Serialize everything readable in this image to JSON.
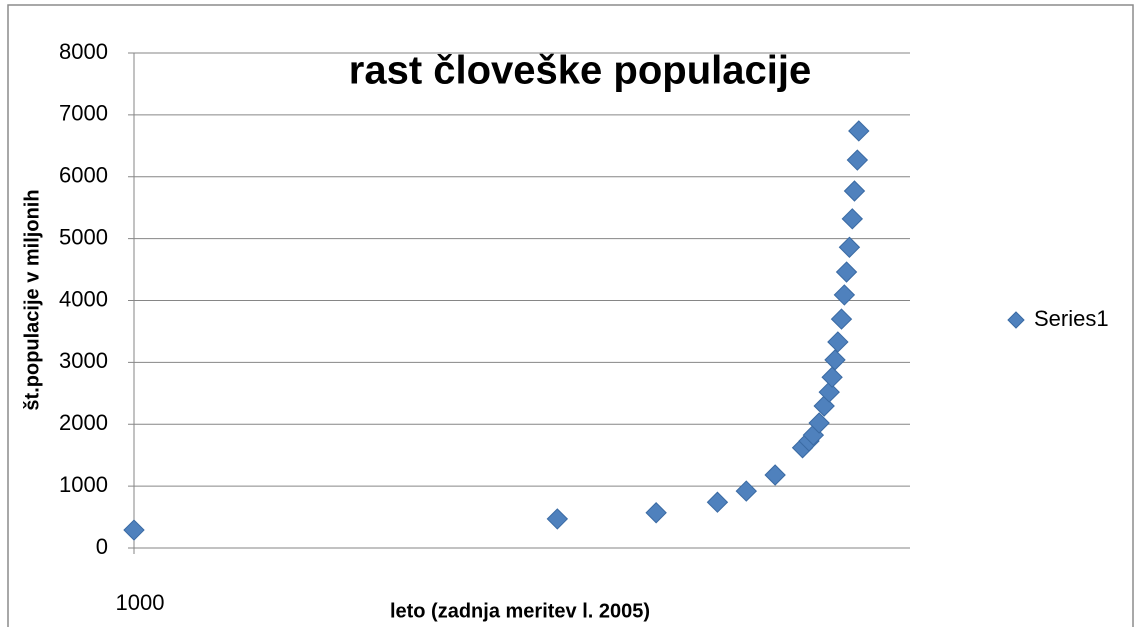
{
  "chart_data": {
    "type": "scatter",
    "title": "rast človeške populacije",
    "x_label": "leto (zadnja meritev l. 2005)",
    "y_label": "št.populacije v miljonih",
    "series": [
      {
        "name": "Series1",
        "color": "#4f81bd",
        "x": [
          1000,
          1587,
          1724,
          1809,
          1849,
          1889,
          1927,
          1936,
          1942,
          1950,
          1957,
          1964,
          1968,
          1972,
          1976,
          1981,
          1985,
          1988,
          1992,
          1996,
          1999,
          2003,
          2005
        ],
        "values": [
          290,
          470,
          570,
          740,
          920,
          1180,
          1620,
          1730,
          1825,
          2020,
          2295,
          2520,
          2760,
          3040,
          3330,
          3700,
          4090,
          4460,
          4860,
          5320,
          5770,
          6270,
          6740
        ]
      }
    ],
    "xlim": [
      1000,
      2076
    ],
    "xticks": [
      1000
    ],
    "ylim": [
      0,
      8000
    ],
    "yticks": [
      0,
      1000,
      2000,
      3000,
      4000,
      5000,
      6000,
      7000,
      8000
    ],
    "grid": true,
    "legend": "right"
  }
}
